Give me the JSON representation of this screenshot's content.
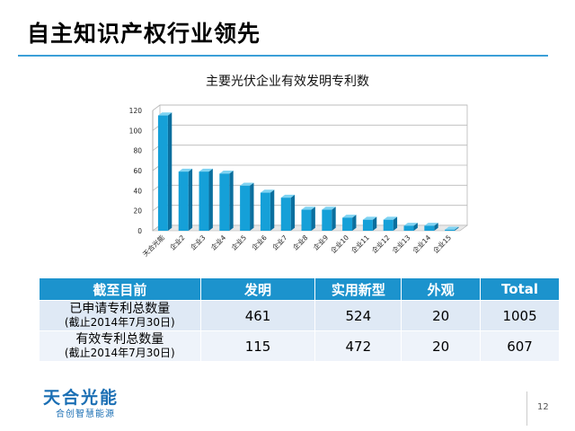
{
  "slide": {
    "title": "自主知识产权行业领先",
    "page_number": "12"
  },
  "chart_data": {
    "type": "bar",
    "title": "主要光伏企业有效发明专利数",
    "categories": [
      "天合光能",
      "企业2",
      "企业3",
      "企业4",
      "企业5",
      "企业6",
      "企业7",
      "企业8",
      "企业9",
      "企业10",
      "企业11",
      "企业12",
      "企业13",
      "企业14",
      "企业15"
    ],
    "values": [
      115,
      59,
      59,
      57,
      45,
      38,
      33,
      21,
      21,
      13,
      11,
      11,
      5,
      5,
      0
    ],
    "ylim": [
      0,
      120
    ],
    "yticks": [
      0,
      20,
      40,
      60,
      80,
      100,
      120
    ],
    "ytick_labels": [
      "0",
      "20",
      "40",
      "60",
      "80",
      "100",
      "120"
    ],
    "grid": true,
    "bar_color": "#15a0d8"
  },
  "table": {
    "headers": [
      "截至目前",
      "发明",
      "实用新型",
      "外观",
      "Total"
    ],
    "rows": [
      {
        "label": "已申请专利总数量",
        "sublabel": "(截止2014年7月30日)",
        "values": [
          "461",
          "524",
          "20",
          "1005"
        ]
      },
      {
        "label": "有效专利总数量",
        "sublabel": "(截止2014年7月30日)",
        "values": [
          "115",
          "472",
          "20",
          "607"
        ]
      }
    ]
  },
  "logo": {
    "name": "天合光能",
    "slogan": "合创智慧能源"
  }
}
